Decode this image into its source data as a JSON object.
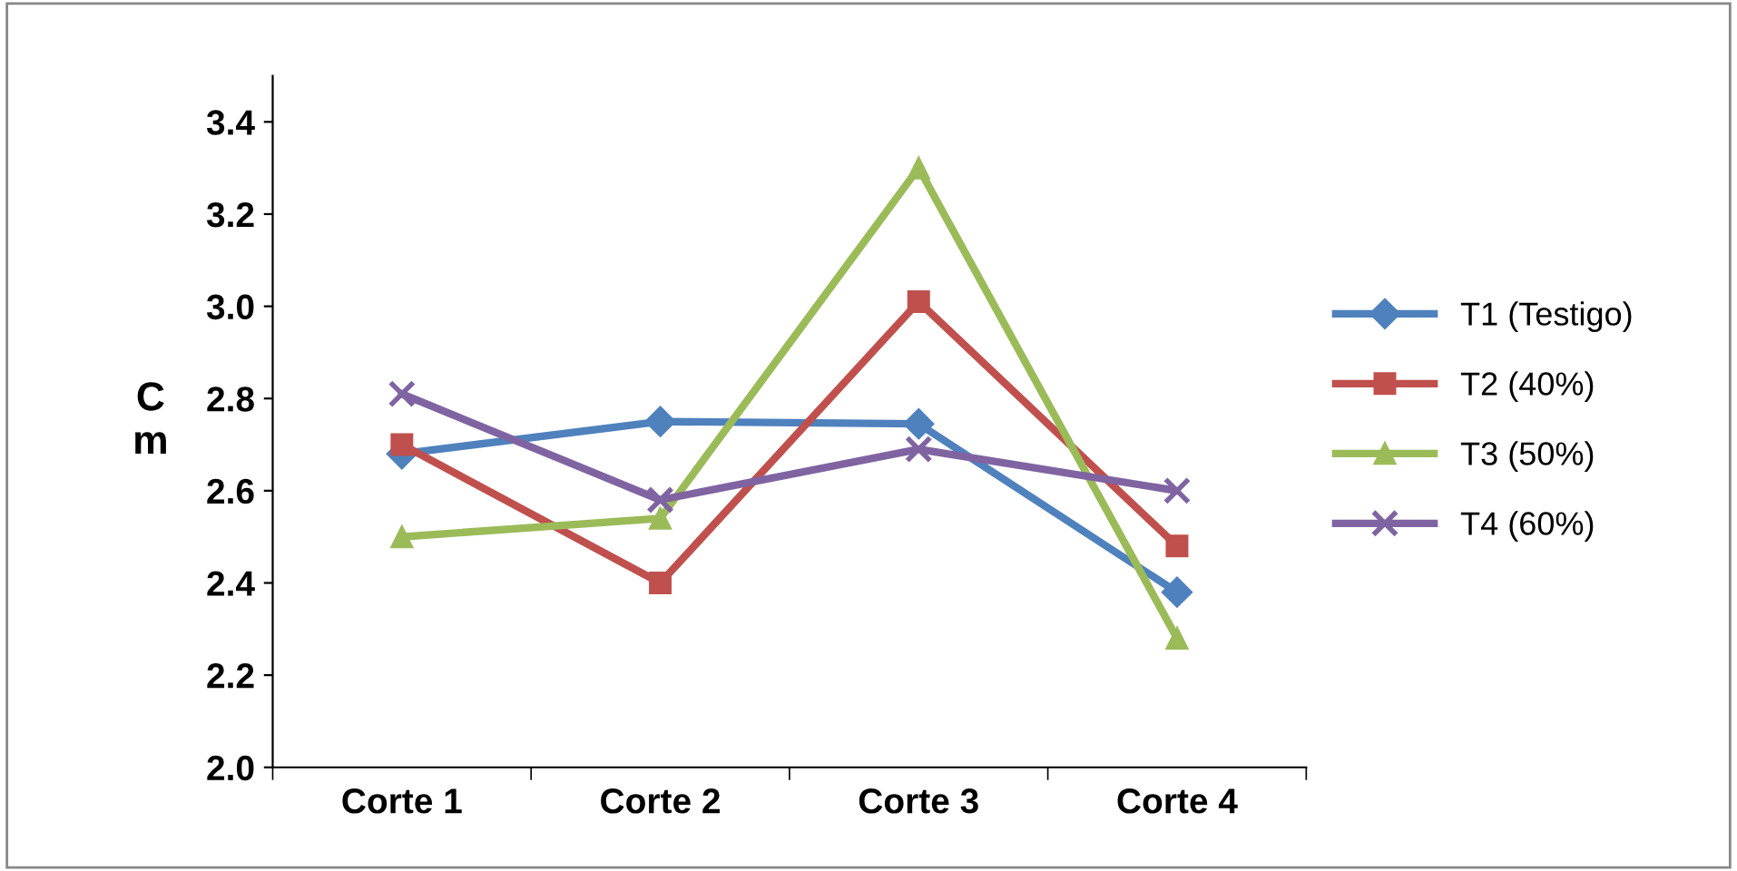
{
  "chart_data": {
    "type": "line",
    "ylabel": "C\nm",
    "categories": [
      "Corte 1",
      "Corte 2",
      "Corte 3",
      "Corte 4"
    ],
    "series": [
      {
        "name": "T1 (Testigo)",
        "color": "#4f81bd",
        "marker": "diamond",
        "values": [
          2.68,
          2.75,
          2.745,
          2.38
        ]
      },
      {
        "name": "T2 (40%)",
        "color": "#c0504d",
        "marker": "square",
        "values": [
          2.7,
          2.4,
          3.01,
          2.48
        ]
      },
      {
        "name": "T3 (50%)",
        "color": "#9bbb59",
        "marker": "triangle",
        "values": [
          2.5,
          2.54,
          3.3,
          2.28
        ]
      },
      {
        "name": "T4 (60%)",
        "color": "#8064a2",
        "marker": "cross",
        "values": [
          2.81,
          2.58,
          2.69,
          2.6
        ]
      }
    ],
    "ylim": [
      2.0,
      3.5
    ],
    "yticks": [
      {
        "value": 2,
        "label": "2.0"
      },
      2.2,
      2.4,
      2.6,
      2.8,
      {
        "value": 3,
        "label": "3.0"
      },
      3.2,
      3.4
    ],
    "grid": false,
    "legend": "right",
    "line_style": "solid"
  }
}
